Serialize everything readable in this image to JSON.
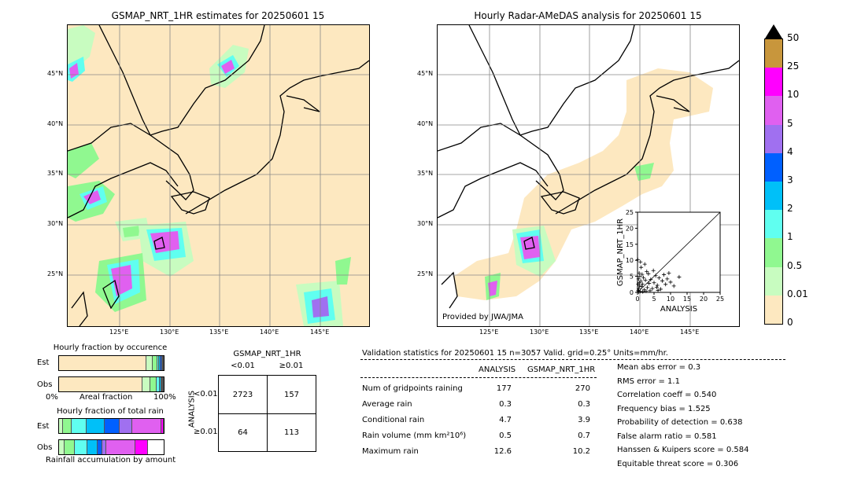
{
  "left_map": {
    "title": "GSMAP_NRT_1HR estimates for 20250601 15",
    "lat_labels": [
      "45°N",
      "40°N",
      "35°N",
      "30°N",
      "25°N"
    ],
    "lon_labels": [
      "125°E",
      "130°E",
      "135°E",
      "140°E",
      "145°E"
    ]
  },
  "right_map": {
    "title": "Hourly Radar-AMeDAS analysis for 20250601 15",
    "lat_labels": [
      "45°N",
      "40°N",
      "35°N",
      "30°N",
      "25°N"
    ],
    "lon_labels": [
      "125°E",
      "130°E",
      "135°E",
      "140°E",
      "145°E"
    ],
    "credit": "Provided by JWA/JMA"
  },
  "colorbar": {
    "labels": [
      "50",
      "25",
      "10",
      "5",
      "4",
      "3",
      "2",
      "1",
      "0.5",
      "0.01",
      "0"
    ],
    "colors": [
      "#c8963c",
      "#ff00ff",
      "#e060f0",
      "#a070f0",
      "#0060ff",
      "#00c0f8",
      "#60fff0",
      "#90f890",
      "#c8fcc0",
      "#fde8c0"
    ],
    "over_color": "#000000"
  },
  "chart_data": [
    {
      "type": "scatter",
      "title": "",
      "xlabel": "ANALYSIS",
      "ylabel": "GSMAP_NRT_1HR",
      "xlim": [
        0,
        25
      ],
      "ylim": [
        0,
        25
      ],
      "x_ticks": [
        "0",
        "5",
        "10",
        "15",
        "20",
        "25"
      ],
      "y_ticks": [
        "0",
        "5",
        "10",
        "15",
        "20",
        "25"
      ],
      "diagonal": true,
      "points": [
        [
          0.2,
          0.5
        ],
        [
          0.4,
          1.2
        ],
        [
          0.6,
          2.0
        ],
        [
          0.8,
          0.3
        ],
        [
          1.0,
          3.5
        ],
        [
          1.2,
          1.8
        ],
        [
          0.3,
          4.2
        ],
        [
          0.5,
          6.0
        ],
        [
          1.5,
          2.6
        ],
        [
          2.0,
          0.8
        ],
        [
          2.4,
          3.8
        ],
        [
          0.7,
          5.0
        ],
        [
          1.8,
          4.6
        ],
        [
          3.0,
          1.5
        ],
        [
          3.5,
          2.8
        ],
        [
          4.0,
          4.0
        ],
        [
          4.5,
          1.2
        ],
        [
          5.0,
          3.0
        ],
        [
          5.5,
          5.2
        ],
        [
          6.0,
          2.2
        ],
        [
          6.5,
          4.5
        ],
        [
          7.0,
          1.0
        ],
        [
          7.5,
          3.6
        ],
        [
          8.0,
          5.5
        ],
        [
          8.5,
          2.5
        ],
        [
          9.0,
          4.2
        ],
        [
          9.5,
          6.0
        ],
        [
          10.0,
          3.2
        ],
        [
          11.0,
          2.0
        ],
        [
          12.6,
          4.8
        ],
        [
          2.8,
          6.5
        ],
        [
          1.1,
          7.8
        ],
        [
          0.9,
          9.5
        ],
        [
          2.2,
          8.8
        ],
        [
          3.3,
          5.8
        ],
        [
          4.8,
          6.8
        ],
        [
          0.1,
          10.2
        ],
        [
          0.4,
          0.1
        ],
        [
          1.6,
          0.2
        ],
        [
          2.6,
          0.4
        ],
        [
          0.2,
          2.6
        ],
        [
          3.8,
          0.5
        ],
        [
          6.2,
          0.6
        ],
        [
          0.6,
          3.0
        ],
        [
          1.4,
          5.6
        ],
        [
          5.8,
          1.6
        ]
      ]
    },
    {
      "type": "bar",
      "title": "Hourly fraction by occurence",
      "orientation": "horizontal-stacked",
      "categories": [
        "Est",
        "Obs"
      ],
      "x_ticks": [
        "0%",
        "Areal fraction",
        "100%"
      ],
      "series": [
        {
          "color": "#fde8c0",
          "values": [
            0.84,
            0.8
          ]
        },
        {
          "color": "#c8fcc0",
          "values": [
            0.06,
            0.08
          ]
        },
        {
          "color": "#90f890",
          "values": [
            0.04,
            0.06
          ]
        },
        {
          "color": "#60fff0",
          "values": [
            0.02,
            0.03
          ]
        },
        {
          "color": "#00c0f8",
          "values": [
            0.015,
            0.015
          ]
        },
        {
          "color": "#0060ff",
          "values": [
            0.01,
            0.005
          ]
        },
        {
          "color": "#a070f0",
          "values": [
            0.01,
            0.005
          ]
        },
        {
          "color": "#e060f0",
          "values": [
            0.005,
            0.005
          ]
        }
      ]
    },
    {
      "type": "bar",
      "title": "Hourly fraction of total rain",
      "orientation": "horizontal-stacked",
      "categories": [
        "Est",
        "Obs"
      ],
      "xlabel": "Rainfall accumulation by amount",
      "series": [
        {
          "color": "#c8fcc0",
          "values": [
            0.04,
            0.05
          ]
        },
        {
          "color": "#90f890",
          "values": [
            0.08,
            0.1
          ]
        },
        {
          "color": "#60fff0",
          "values": [
            0.14,
            0.12
          ]
        },
        {
          "color": "#00c0f8",
          "values": [
            0.18,
            0.1
          ]
        },
        {
          "color": "#0060ff",
          "values": [
            0.14,
            0.04
          ]
        },
        {
          "color": "#a070f0",
          "values": [
            0.12,
            0.04
          ]
        },
        {
          "color": "#e060f0",
          "values": [
            0.28,
            0.28
          ]
        },
        {
          "color": "#ff00ff",
          "values": [
            0.02,
            0.12
          ]
        }
      ]
    }
  ],
  "contingency": {
    "title": "GSMAP_NRT_1HR",
    "col_headers": [
      "<0.01",
      "≥0.01"
    ],
    "row_axis": "ANALYSIS",
    "row_headers": [
      "<0.01",
      "≥0.01"
    ],
    "cells": [
      [
        "2723",
        "157"
      ],
      [
        "64",
        "113"
      ]
    ]
  },
  "validation": {
    "header": "Validation statistics for 20250601 15  n=3057 Valid. grid=0.25° Units=mm/hr.",
    "col_analysis": "ANALYSIS",
    "col_gsmap": "GSMAP_NRT_1HR",
    "rows": [
      {
        "label": "Num of gridpoints raining",
        "analysis": "177",
        "gsmap": "270"
      },
      {
        "label": "Average rain",
        "analysis": "0.3",
        "gsmap": "0.3"
      },
      {
        "label": "Conditional rain",
        "analysis": "4.7",
        "gsmap": "3.9"
      },
      {
        "label": "Rain volume (mm km²10⁶)",
        "analysis": "0.5",
        "gsmap": "0.7"
      },
      {
        "label": "Maximum rain",
        "analysis": "12.6",
        "gsmap": "10.2"
      }
    ],
    "scores": [
      "Mean abs error =    0.3",
      "RMS error =    1.1",
      "Correlation coeff =  0.540",
      "Frequency bias =  1.525",
      "Probability of detection =  0.638",
      "False alarm ratio =  0.581",
      "Hanssen & Kuipers score =  0.584",
      "Equitable threat score =  0.306"
    ]
  }
}
